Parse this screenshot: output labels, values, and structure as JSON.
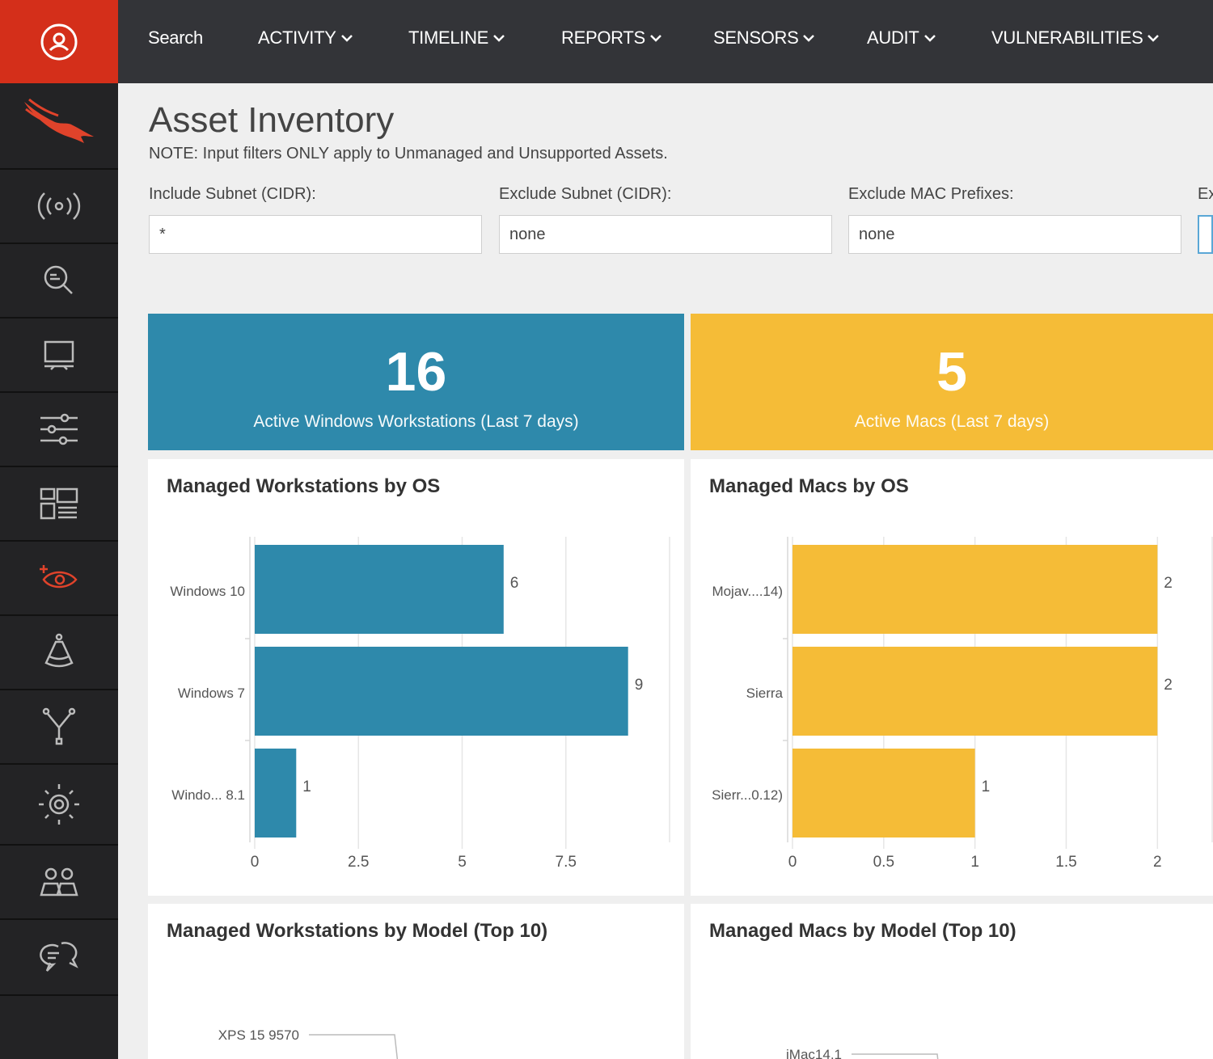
{
  "topnav": {
    "items": [
      {
        "label": "Search",
        "dropdown": false
      },
      {
        "label": "ACTIVITY",
        "dropdown": true
      },
      {
        "label": "TIMELINE",
        "dropdown": true
      },
      {
        "label": "REPORTS",
        "dropdown": true
      },
      {
        "label": "SENSORS",
        "dropdown": true
      },
      {
        "label": "AUDIT",
        "dropdown": true
      },
      {
        "label": "VULNERABILITIES",
        "dropdown": true
      }
    ]
  },
  "sidebar": {
    "account_icon": "user-circle-icon",
    "logo_icon": "falcon-logo-icon",
    "items": [
      {
        "icon": "broadcast-icon"
      },
      {
        "icon": "search-events-icon"
      },
      {
        "icon": "monitor-icon"
      },
      {
        "icon": "sliders-icon"
      },
      {
        "icon": "dashboard-layout-icon"
      },
      {
        "icon": "eye-insight-icon",
        "active": true
      },
      {
        "icon": "flask-icon"
      },
      {
        "icon": "branch-icon"
      },
      {
        "icon": "target-radar-icon"
      },
      {
        "icon": "users-icon"
      },
      {
        "icon": "chat-support-icon"
      }
    ]
  },
  "page": {
    "title": "Asset Inventory",
    "note": "NOTE: Input filters ONLY apply to Unmanaged and Unsupported Assets."
  },
  "filters": [
    {
      "label": "Include Subnet (CIDR):",
      "value": "*"
    },
    {
      "label": "Exclude Subnet (CIDR):",
      "value": "none"
    },
    {
      "label": "Exclude MAC Prefixes:",
      "value": "none"
    },
    {
      "label": "Ex",
      "value": ""
    }
  ],
  "stats": [
    {
      "value": "16",
      "label": "Active Windows Workstations (Last 7 days)",
      "color": "#2e89ab"
    },
    {
      "value": "5",
      "label": "Active Macs (Last 7 days)",
      "color": "#f5bc37"
    }
  ],
  "cards": {
    "workstations_os_title": "Managed Workstations by OS",
    "macs_os_title": "Managed Macs by OS",
    "workstations_model_title": "Managed Workstations by Model (Top 10)",
    "macs_model_title": "Managed Macs by Model (Top 10)"
  },
  "chart_data": [
    {
      "type": "bar",
      "orientation": "horizontal",
      "title": "Managed Workstations by OS",
      "categories": [
        "Windows 10",
        "Windows 7",
        "Windo... 8.1"
      ],
      "values": [
        6,
        9,
        1
      ],
      "xlim": [
        0,
        10
      ],
      "xticks": [
        "0",
        "2.5",
        "5",
        "7.5"
      ],
      "color": "#2e89ab",
      "grid": true
    },
    {
      "type": "bar",
      "orientation": "horizontal",
      "title": "Managed Macs by OS",
      "categories": [
        "Mojav....14)",
        "Sierra",
        "Sierr...0.12)"
      ],
      "values": [
        2,
        2,
        1
      ],
      "xlim": [
        0,
        2.3
      ],
      "xticks": [
        "0",
        "0.5",
        "1",
        "1.5",
        "2"
      ],
      "color": "#f5bc37",
      "grid": true
    },
    {
      "type": "bar",
      "orientation": "horizontal",
      "title": "Managed Workstations by Model (Top 10)",
      "categories": [
        "XPS 15 9570"
      ]
    },
    {
      "type": "bar",
      "orientation": "horizontal",
      "title": "Managed Macs by Model (Top 10)",
      "categories": [
        "iMac14,1"
      ]
    }
  ]
}
